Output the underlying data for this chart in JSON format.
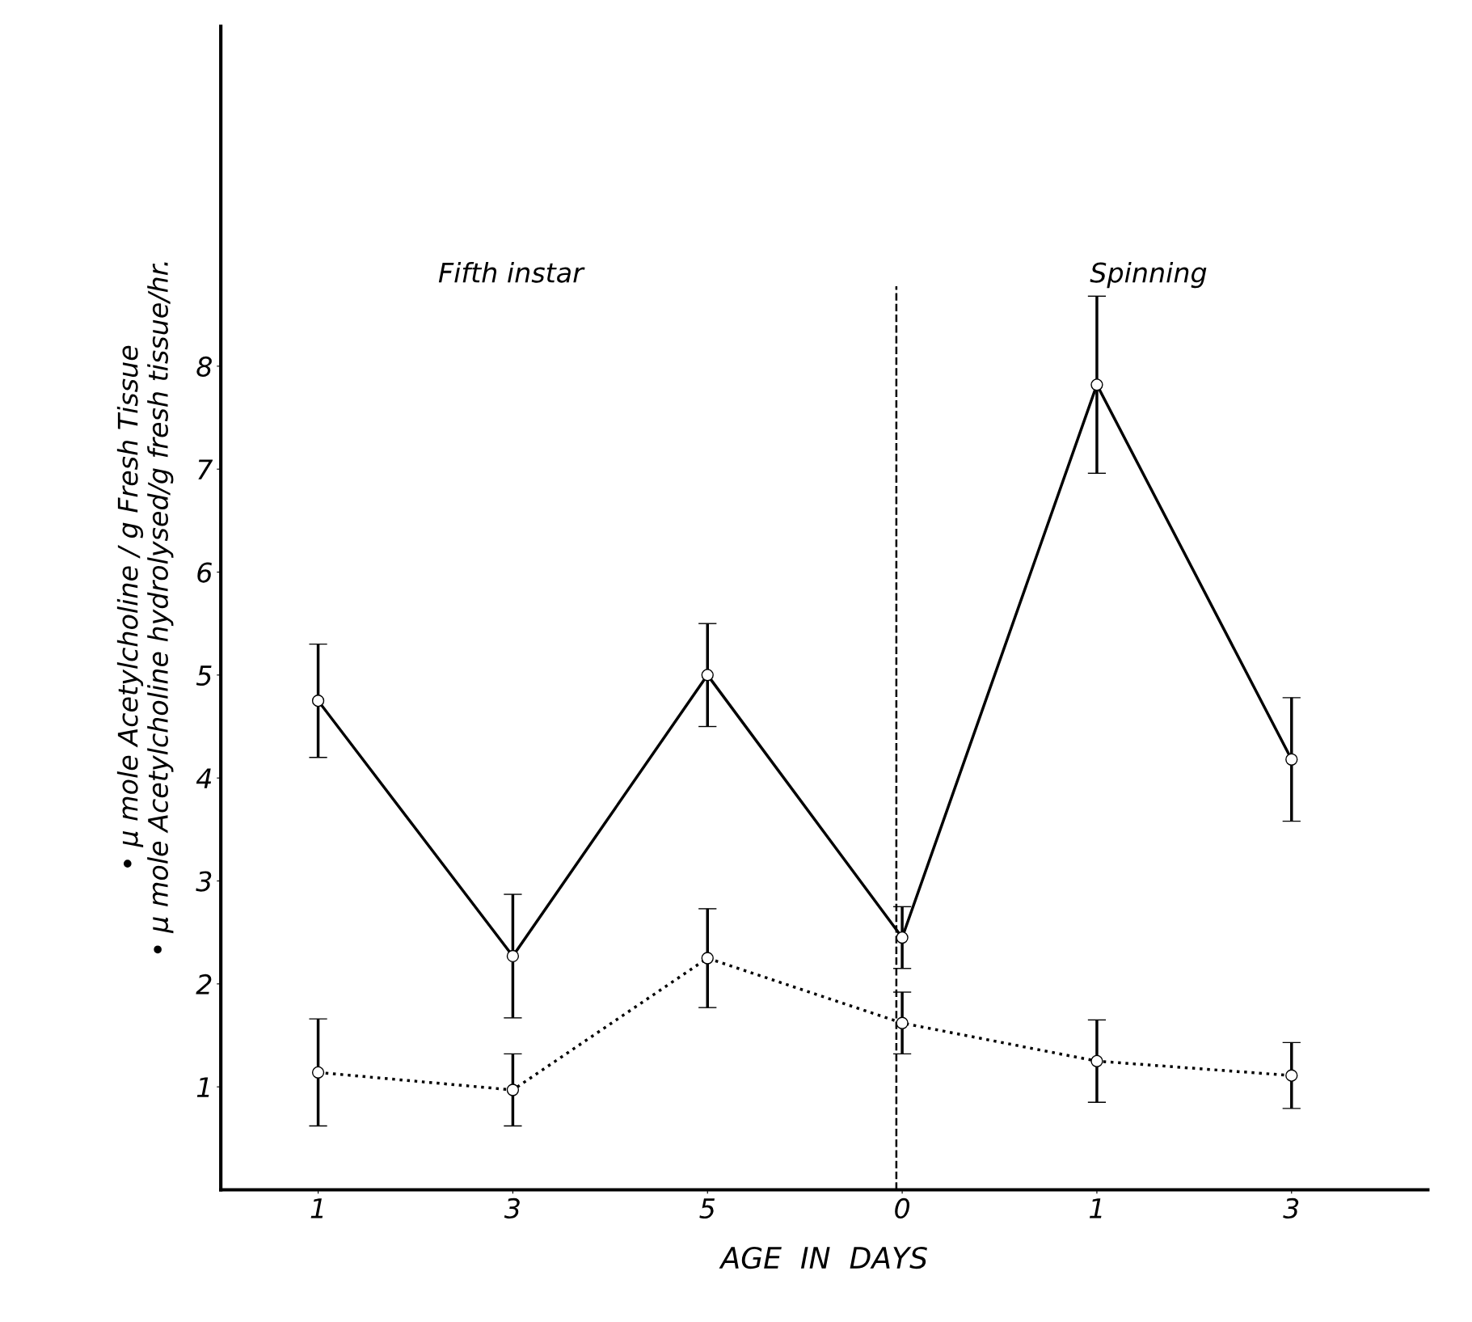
{
  "chart_data": {
    "type": "line",
    "xlabel": "AGE  IN  DAYS",
    "ylabel": "• μ mole Acetylcholine / g Fresh Tissue\n• μ mole Acetylcholine hydrolysed/g fresh tissue/hr.",
    "categories": [
      "1",
      "3",
      "5",
      "0",
      "1",
      "3"
    ],
    "series": [
      {
        "color": "#000000",
        "line_style": "solid",
        "values": [
          4.75,
          2.27,
          5.0,
          2.45,
          7.82,
          4.18
        ],
        "errors": [
          0.55,
          0.6,
          0.5,
          0.3,
          0.86,
          0.6
        ]
      },
      {
        "color": "#000000",
        "line_style": "dotted",
        "values": [
          1.14,
          0.97,
          2.25,
          1.62,
          1.25,
          1.11
        ],
        "errors": [
          0.52,
          0.35,
          0.48,
          0.3,
          0.4,
          0.32
        ]
      }
    ],
    "marker": "circle",
    "ylim": [
      0,
      11.3
    ],
    "yticks": [
      1,
      2,
      3,
      4,
      5,
      6,
      7,
      8
    ],
    "ref_lines": [
      {
        "axis": "x",
        "value": "0",
        "line_style": "dashed",
        "color": "#000000"
      }
    ],
    "annotations": [
      "Fifth instar",
      "Spinning"
    ],
    "grid": false
  }
}
